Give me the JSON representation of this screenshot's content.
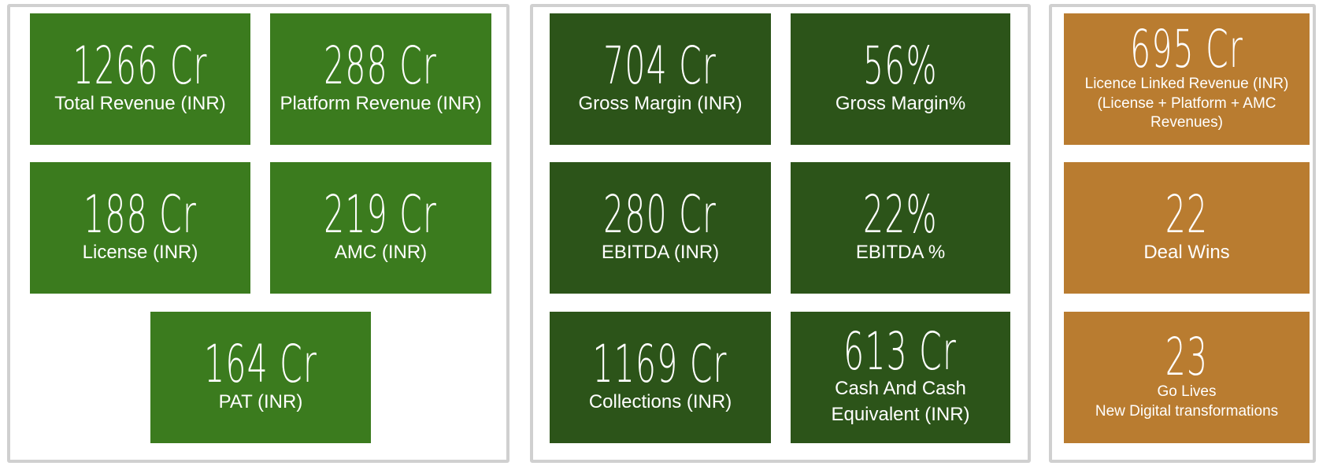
{
  "panels": [
    {
      "tiles": [
        {
          "value": "1266 Cr",
          "label": [
            "Total Revenue (INR)"
          ]
        },
        {
          "value": "288 Cr",
          "label": [
            "Platform Revenue (INR)"
          ]
        },
        {
          "value": "188 Cr",
          "label": [
            "License (INR)"
          ]
        },
        {
          "value": "219 Cr",
          "label": [
            "AMC (INR)"
          ]
        },
        {
          "value": "164 Cr",
          "label": [
            "PAT (INR)"
          ]
        }
      ]
    },
    {
      "tiles": [
        {
          "value": "704 Cr",
          "label": [
            "Gross Margin (INR)"
          ]
        },
        {
          "value": "56%",
          "label": [
            "Gross Margin%"
          ]
        },
        {
          "value": "280 Cr",
          "label": [
            "EBITDA  (INR)"
          ]
        },
        {
          "value": "22%",
          "label": [
            "EBITDA %"
          ]
        },
        {
          "value": "1169 Cr",
          "label": [
            "Collections (INR)"
          ]
        },
        {
          "value": "613 Cr",
          "label": [
            "Cash And Cash Equivalent  (INR)"
          ]
        }
      ]
    },
    {
      "tiles": [
        {
          "value": "695 Cr",
          "label": [
            "Licence Linked  Revenue (INR)",
            "(License + Platform + AMC Revenues)"
          ]
        },
        {
          "value": "22",
          "label": [
            "Deal Wins"
          ]
        },
        {
          "value": "23",
          "label": [
            "Go Lives",
            "New Digital transformations"
          ]
        }
      ]
    }
  ]
}
